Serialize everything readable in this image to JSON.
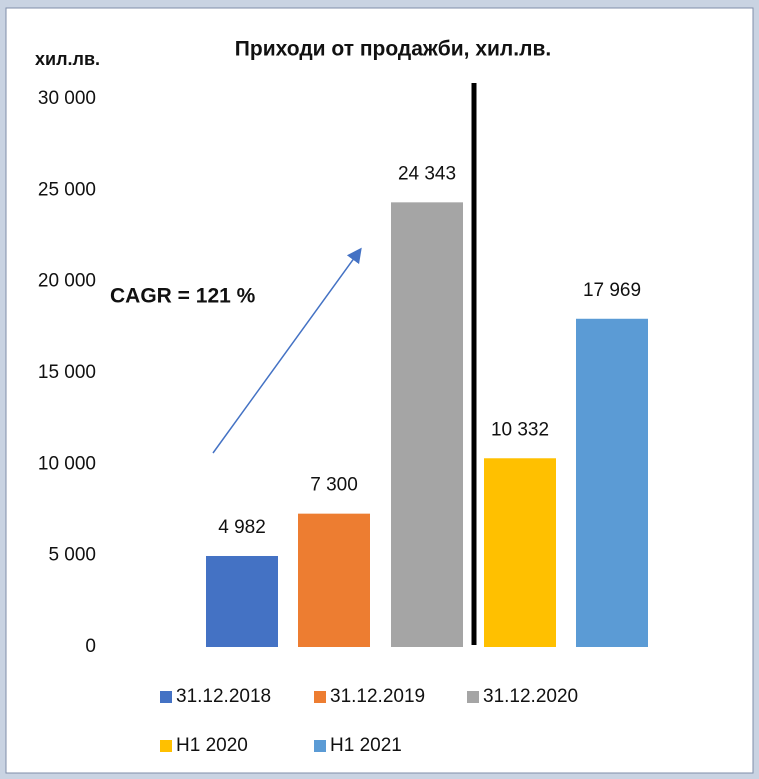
{
  "chart_data": {
    "type": "bar",
    "title": "Приходи от продажби, хил.лв.",
    "y_label": "хил.лв.",
    "annotation": "CAGR = 121 %",
    "series": [
      {
        "name": "31.12.2018",
        "color": "#4472c4",
        "values": [
          4982
        ],
        "value_labels": [
          "4 982"
        ]
      },
      {
        "name": "31.12.2019",
        "color": "#ed7d31",
        "values": [
          7300
        ],
        "value_labels": [
          "7 300"
        ]
      },
      {
        "name": "31.12.2020",
        "color": "#a5a5a5",
        "values": [
          24343
        ],
        "value_labels": [
          "24 343"
        ]
      },
      {
        "name": "H1 2020",
        "color": "#ffc000",
        "values": [
          10332
        ],
        "value_labels": [
          "10 332"
        ]
      },
      {
        "name": "H1 2021",
        "color": "#5b9bd5",
        "values": [
          17969
        ],
        "value_labels": [
          "17 969"
        ]
      }
    ],
    "ylim": [
      0,
      30000
    ],
    "yticks": [
      0,
      {
        "value": 5000,
        "label": "5 000"
      },
      {
        "value": 10000,
        "label": "10 000"
      },
      {
        "value": 15000,
        "label": "15 000"
      },
      {
        "value": 20000,
        "label": "20 000"
      },
      {
        "value": 25000,
        "label": "25 000"
      },
      {
        "value": 30000,
        "label": "30 000"
      }
    ],
    "grid": false,
    "legend": "bottom"
  }
}
